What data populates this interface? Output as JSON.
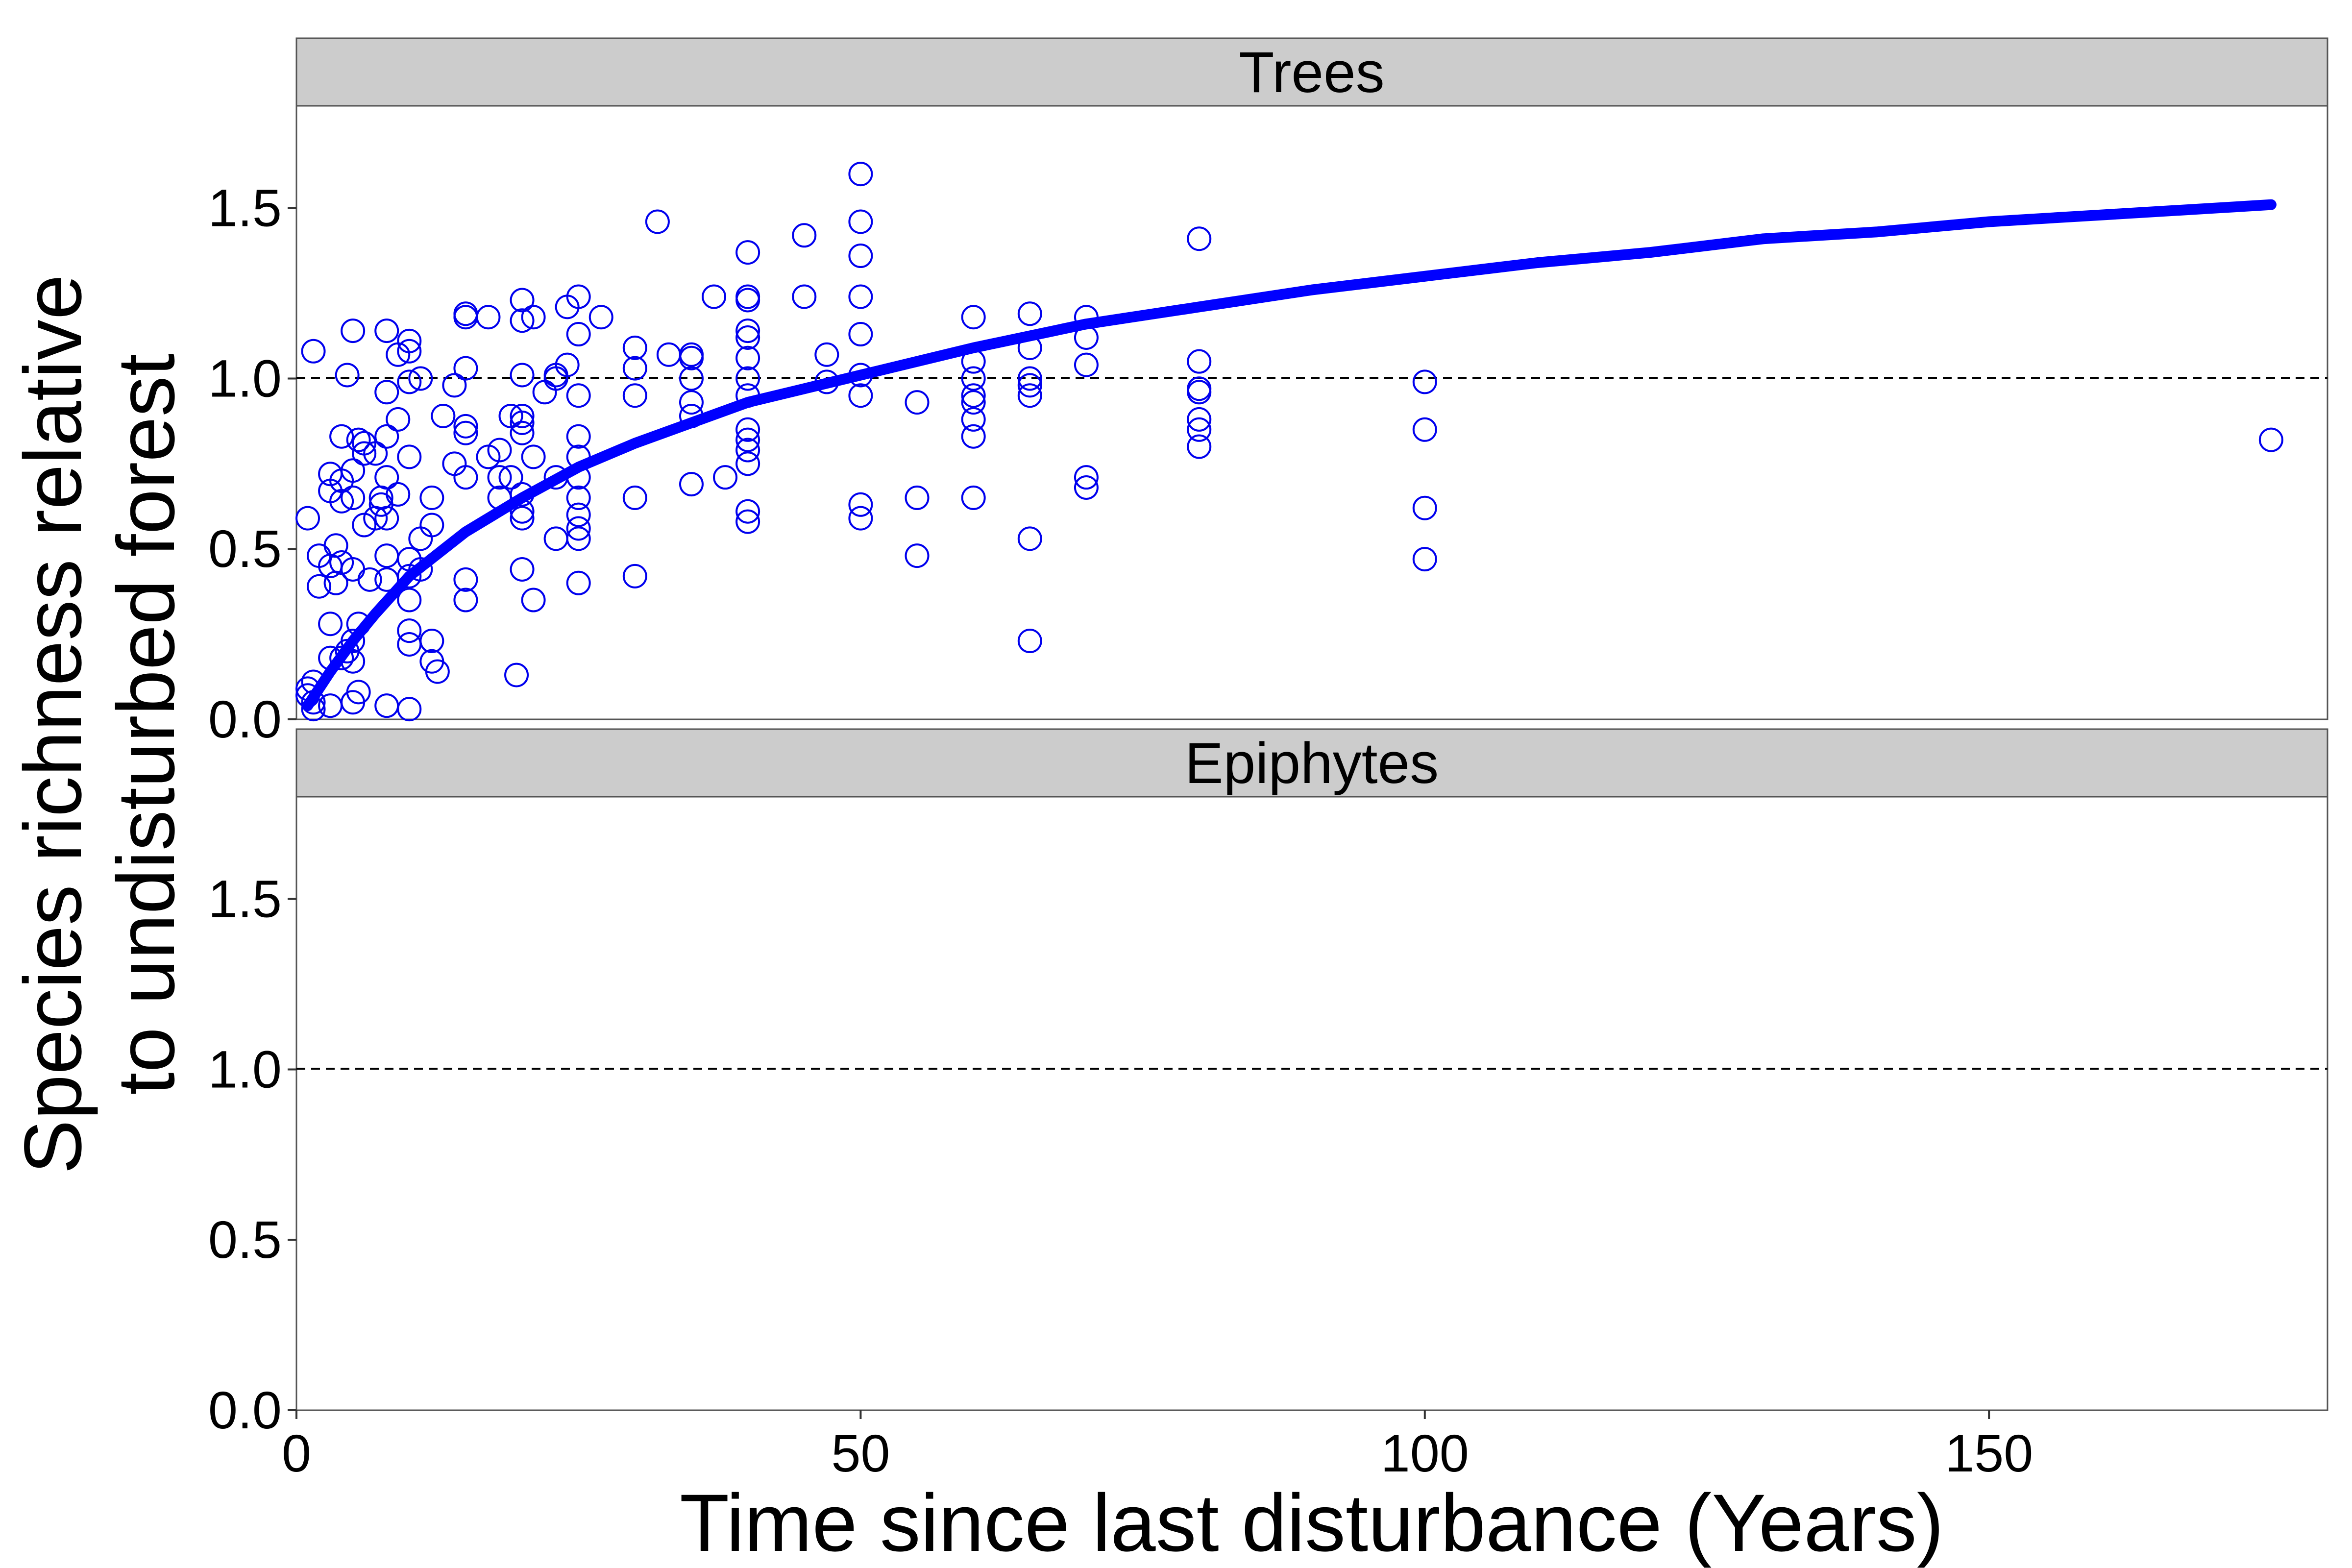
{
  "chart_data": {
    "type": "scatter",
    "facets": [
      "Trees",
      "Epiphytes"
    ],
    "xlabel": "Time since last disturbance (Years)",
    "ylabel": [
      "Species richness relative",
      "to undisturbed forest"
    ],
    "xlim": [
      0,
      180
    ],
    "ylim": [
      0,
      1.8
    ],
    "x_ticks": [
      0,
      50,
      100,
      150
    ],
    "y_ticks": [
      0.0,
      0.5,
      1.0,
      1.5
    ],
    "x_tick_labels": [
      "0",
      "50",
      "100",
      "150"
    ],
    "y_tick_labels": [
      "0.0",
      "0.5",
      "1.0",
      "1.5"
    ],
    "reference_line": {
      "y": 1.0,
      "style": "dashed"
    },
    "grid": false,
    "legend": "none",
    "colors": {
      "points": "#0000ee",
      "fit": "#0000ff",
      "strip": "#cccccc",
      "reference": "#000000"
    },
    "series": [
      {
        "facet": "Trees",
        "kind": "points",
        "points": [
          [
            1,
            0.59
          ],
          [
            1,
            0.09
          ],
          [
            1,
            0.07
          ],
          [
            1.5,
            0.11
          ],
          [
            1.5,
            0.05
          ],
          [
            1.5,
            0.03
          ],
          [
            1.5,
            1.08
          ],
          [
            2,
            0.48
          ],
          [
            2,
            0.39
          ],
          [
            3,
            0.18
          ],
          [
            3,
            0.04
          ],
          [
            3,
            0.45
          ],
          [
            3,
            0.72
          ],
          [
            3,
            0.67
          ],
          [
            3,
            0.28
          ],
          [
            3.5,
            0.4
          ],
          [
            3.5,
            0.51
          ],
          [
            4,
            0.18
          ],
          [
            4,
            0.46
          ],
          [
            4,
            0.64
          ],
          [
            4,
            0.7
          ],
          [
            4,
            0.83
          ],
          [
            4.5,
            1.01
          ],
          [
            4.5,
            0.2
          ],
          [
            5,
            0.05
          ],
          [
            5,
            0.17
          ],
          [
            5,
            0.23
          ],
          [
            5,
            0.44
          ],
          [
            5,
            0.65
          ],
          [
            5,
            0.73
          ],
          [
            5,
            1.14
          ],
          [
            5.5,
            0.28
          ],
          [
            5.5,
            0.08
          ],
          [
            5.5,
            0.82
          ],
          [
            6,
            0.81
          ],
          [
            6,
            0.57
          ],
          [
            6,
            0.78
          ],
          [
            6.5,
            0.41
          ],
          [
            7,
            0.59
          ],
          [
            7,
            0.78
          ],
          [
            7.5,
            0.63
          ],
          [
            7.5,
            0.65
          ],
          [
            8,
            0.04
          ],
          [
            8,
            0.41
          ],
          [
            8,
            0.48
          ],
          [
            8,
            0.59
          ],
          [
            8,
            0.71
          ],
          [
            8,
            0.83
          ],
          [
            8,
            0.96
          ],
          [
            8,
            1.14
          ],
          [
            9,
            0.66
          ],
          [
            9,
            0.88
          ],
          [
            9,
            1.07
          ],
          [
            10,
            0.03
          ],
          [
            10,
            0.22
          ],
          [
            10,
            0.26
          ],
          [
            10,
            0.35
          ],
          [
            10,
            0.42
          ],
          [
            10,
            0.47
          ],
          [
            10,
            0.77
          ],
          [
            10,
            0.99
          ],
          [
            10,
            1.08
          ],
          [
            10,
            1.11
          ],
          [
            11,
            0.53
          ],
          [
            11,
            0.44
          ],
          [
            11,
            1.0
          ],
          [
            12,
            0.23
          ],
          [
            12,
            0.17
          ],
          [
            12,
            0.57
          ],
          [
            12,
            0.65
          ],
          [
            12.5,
            0.14
          ],
          [
            13,
            0.89
          ],
          [
            14,
            0.75
          ],
          [
            14,
            0.98
          ],
          [
            15,
            0.35
          ],
          [
            15,
            0.41
          ],
          [
            15,
            0.71
          ],
          [
            15,
            0.84
          ],
          [
            15,
            0.86
          ],
          [
            15,
            1.03
          ],
          [
            15,
            1.18
          ],
          [
            15,
            1.19
          ],
          [
            17,
            0.77
          ],
          [
            17,
            1.18
          ],
          [
            18,
            0.65
          ],
          [
            18,
            0.71
          ],
          [
            18,
            0.79
          ],
          [
            19,
            0.71
          ],
          [
            19,
            0.89
          ],
          [
            19.5,
            0.13
          ],
          [
            20,
            0.44
          ],
          [
            20,
            0.59
          ],
          [
            20,
            0.61
          ],
          [
            20,
            0.66
          ],
          [
            20,
            0.84
          ],
          [
            20,
            0.87
          ],
          [
            20,
            0.89
          ],
          [
            20,
            1.01
          ],
          [
            20,
            1.17
          ],
          [
            20,
            1.23
          ],
          [
            21,
            0.35
          ],
          [
            21,
            0.77
          ],
          [
            21,
            1.18
          ],
          [
            22,
            0.96
          ],
          [
            23,
            0.53
          ],
          [
            23,
            0.71
          ],
          [
            23,
            1.0
          ],
          [
            23,
            1.01
          ],
          [
            24,
            1.04
          ],
          [
            24,
            1.21
          ],
          [
            25,
            0.4
          ],
          [
            25,
            0.53
          ],
          [
            25,
            0.56
          ],
          [
            25,
            0.6
          ],
          [
            25,
            0.65
          ],
          [
            25,
            0.71
          ],
          [
            25,
            0.77
          ],
          [
            25,
            0.83
          ],
          [
            25,
            0.95
          ],
          [
            25,
            1.13
          ],
          [
            25,
            1.24
          ],
          [
            27,
            1.18
          ],
          [
            30,
            0.42
          ],
          [
            30,
            0.65
          ],
          [
            30,
            0.95
          ],
          [
            30,
            1.03
          ],
          [
            30,
            1.09
          ],
          [
            32,
            1.46
          ],
          [
            33,
            1.07
          ],
          [
            35,
            0.69
          ],
          [
            35,
            0.89
          ],
          [
            35,
            0.93
          ],
          [
            35,
            1.0
          ],
          [
            35,
            1.06
          ],
          [
            35,
            1.07
          ],
          [
            37,
            1.24
          ],
          [
            38,
            0.71
          ],
          [
            40,
            0.58
          ],
          [
            40,
            0.61
          ],
          [
            40,
            0.75
          ],
          [
            40,
            0.79
          ],
          [
            40,
            0.82
          ],
          [
            40,
            0.85
          ],
          [
            40,
            0.95
          ],
          [
            40,
            1.0
          ],
          [
            40,
            1.06
          ],
          [
            40,
            1.12
          ],
          [
            40,
            1.14
          ],
          [
            40,
            1.23
          ],
          [
            40,
            1.24
          ],
          [
            40,
            1.37
          ],
          [
            45,
            1.24
          ],
          [
            45,
            1.42
          ],
          [
            47,
            1.07
          ],
          [
            47,
            0.99
          ],
          [
            50,
            0.59
          ],
          [
            50,
            0.63
          ],
          [
            50,
            0.95
          ],
          [
            50,
            1.01
          ],
          [
            50,
            1.13
          ],
          [
            50,
            1.24
          ],
          [
            50,
            1.36
          ],
          [
            50,
            1.46
          ],
          [
            50,
            1.6
          ],
          [
            55,
            0.48
          ],
          [
            55,
            0.65
          ],
          [
            55,
            0.93
          ],
          [
            60,
            0.65
          ],
          [
            60,
            0.83
          ],
          [
            60,
            0.88
          ],
          [
            60,
            0.93
          ],
          [
            60,
            0.95
          ],
          [
            60,
            1.0
          ],
          [
            60,
            1.05
          ],
          [
            60,
            1.18
          ],
          [
            65,
            0.23
          ],
          [
            65,
            0.53
          ],
          [
            65,
            0.95
          ],
          [
            65,
            0.98
          ],
          [
            65,
            1.0
          ],
          [
            65,
            1.09
          ],
          [
            65,
            1.19
          ],
          [
            70,
            0.68
          ],
          [
            70,
            0.71
          ],
          [
            70,
            1.04
          ],
          [
            70,
            1.12
          ],
          [
            70,
            1.18
          ],
          [
            80,
            0.8
          ],
          [
            80,
            0.85
          ],
          [
            80,
            0.88
          ],
          [
            80,
            0.96
          ],
          [
            80,
            0.97
          ],
          [
            80,
            1.05
          ],
          [
            80,
            1.41
          ],
          [
            100,
            0.47
          ],
          [
            100,
            0.62
          ],
          [
            100,
            0.85
          ],
          [
            100,
            0.99
          ],
          [
            175,
            0.82
          ]
        ]
      },
      {
        "facet": "Trees",
        "kind": "fitted_curve",
        "x": [
          1,
          2,
          3,
          5,
          7,
          10,
          15,
          20,
          25,
          30,
          35,
          40,
          45,
          50,
          60,
          70,
          80,
          90,
          100,
          110,
          120,
          130,
          140,
          150,
          160,
          170,
          175
        ],
        "y": [
          0.04,
          0.09,
          0.14,
          0.23,
          0.31,
          0.42,
          0.55,
          0.65,
          0.74,
          0.81,
          0.87,
          0.93,
          0.97,
          1.01,
          1.09,
          1.16,
          1.21,
          1.26,
          1.3,
          1.34,
          1.37,
          1.41,
          1.43,
          1.46,
          1.48,
          1.5,
          1.51
        ]
      }
    ]
  }
}
